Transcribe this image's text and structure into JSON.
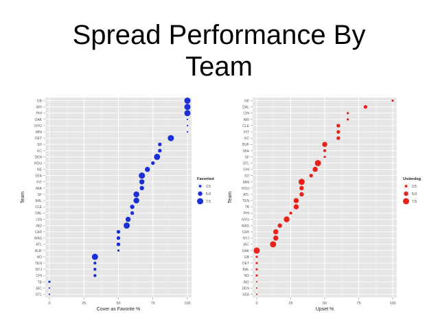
{
  "slide": {
    "title_line1": "Spread Performance By",
    "title_line2": "Team"
  },
  "chart_data": [
    {
      "type": "scatter",
      "xlabel": "Cover as Favorite %",
      "ylabel": "Team",
      "xlim": [
        0,
        100
      ],
      "xticks": [
        0,
        25,
        50,
        75,
        100
      ],
      "grid": true,
      "color": "#1c2fd6",
      "legend": {
        "title": "Favorited",
        "entries": [
          "2.5",
          "5.0",
          "7.5"
        ],
        "sizes": [
          2.5,
          5.0,
          7.5
        ],
        "placement": "right"
      },
      "points": [
        {
          "team": "GB",
          "x": 100,
          "size": 7.5
        },
        {
          "team": "ARI",
          "x": 100,
          "size": 7.5
        },
        {
          "team": "PHI",
          "x": 100,
          "size": 7.5
        },
        {
          "team": "OAK",
          "x": 100,
          "size": 1
        },
        {
          "team": "NYG",
          "x": 100,
          "size": 1
        },
        {
          "team": "MIN",
          "x": 100,
          "size": 1
        },
        {
          "team": "DET",
          "x": 88,
          "size": 7.5
        },
        {
          "team": "SD",
          "x": 80,
          "size": 4
        },
        {
          "team": "KC",
          "x": 80,
          "size": 4
        },
        {
          "team": "DEN",
          "x": 78,
          "size": 7.5
        },
        {
          "team": "HOU",
          "x": 75,
          "size": 4
        },
        {
          "team": "NE",
          "x": 71,
          "size": 6
        },
        {
          "team": "SEA",
          "x": 67,
          "size": 7.5
        },
        {
          "team": "PIT",
          "x": 67,
          "size": 6
        },
        {
          "team": "MIA",
          "x": 67,
          "size": 5
        },
        {
          "team": "SF",
          "x": 63,
          "size": 7
        },
        {
          "team": "BAL",
          "x": 63,
          "size": 7
        },
        {
          "team": "CLE",
          "x": 60,
          "size": 5
        },
        {
          "team": "DAL",
          "x": 60,
          "size": 4
        },
        {
          "team": "CIN",
          "x": 57,
          "size": 6
        },
        {
          "team": "IND",
          "x": 56,
          "size": 7.5
        },
        {
          "team": "CAR",
          "x": 50,
          "size": 4
        },
        {
          "team": "WAS",
          "x": 50,
          "size": 4
        },
        {
          "team": "ATL",
          "x": 50,
          "size": 4
        },
        {
          "team": "BUF",
          "x": 50,
          "size": 2
        },
        {
          "team": "NO",
          "x": 33,
          "size": 7.5
        },
        {
          "team": "TEN",
          "x": 33,
          "size": 3
        },
        {
          "team": "NYJ",
          "x": 33,
          "size": 3
        },
        {
          "team": "CHI",
          "x": 33,
          "size": 3
        },
        {
          "team": "TB",
          "x": 0,
          "size": 2
        },
        {
          "team": "JAC",
          "x": 0,
          "size": 1
        },
        {
          "team": "STL",
          "x": 0,
          "size": 1
        }
      ]
    },
    {
      "type": "scatter",
      "xlabel": "Upset %",
      "ylabel": "Team",
      "xlim": [
        0,
        100
      ],
      "xticks": [
        0,
        25,
        50,
        75,
        100
      ],
      "grid": true,
      "color": "#e8231c",
      "legend": {
        "title": "Underdog",
        "entries": [
          "2.5",
          "5.0",
          "7.5"
        ],
        "sizes": [
          2.5,
          5.0,
          7.5
        ],
        "placement": "right"
      },
      "points": [
        {
          "team": "NE",
          "x": 100,
          "size": 2
        },
        {
          "team": "DAL",
          "x": 80,
          "size": 4
        },
        {
          "team": "CIN",
          "x": 67,
          "size": 2
        },
        {
          "team": "ARI",
          "x": 67,
          "size": 2
        },
        {
          "team": "CLE",
          "x": 60,
          "size": 4
        },
        {
          "team": "PIT",
          "x": 60,
          "size": 4
        },
        {
          "team": "KC",
          "x": 60,
          "size": 4
        },
        {
          "team": "BUF",
          "x": 50,
          "size": 6
        },
        {
          "team": "MIA",
          "x": 50,
          "size": 3
        },
        {
          "team": "SF",
          "x": 50,
          "size": 2
        },
        {
          "team": "STL",
          "x": 45,
          "size": 7.5
        },
        {
          "team": "CHI",
          "x": 43,
          "size": 6
        },
        {
          "team": "SD",
          "x": 40,
          "size": 4
        },
        {
          "team": "MIN",
          "x": 33,
          "size": 7.5
        },
        {
          "team": "HOU",
          "x": 33,
          "size": 5
        },
        {
          "team": "ATL",
          "x": 33,
          "size": 5
        },
        {
          "team": "TEN",
          "x": 29,
          "size": 6
        },
        {
          "team": "TB",
          "x": 29,
          "size": 6
        },
        {
          "team": "PHI",
          "x": 25,
          "size": 3
        },
        {
          "team": "NYG",
          "x": 22,
          "size": 7
        },
        {
          "team": "WAS",
          "x": 17,
          "size": 5
        },
        {
          "team": "CAR",
          "x": 14,
          "size": 6
        },
        {
          "team": "NYJ",
          "x": 14,
          "size": 6
        },
        {
          "team": "JAC",
          "x": 12,
          "size": 7.5
        },
        {
          "team": "OAK",
          "x": 0,
          "size": 7.5
        },
        {
          "team": "GB",
          "x": 0,
          "size": 2
        },
        {
          "team": "DET",
          "x": 0,
          "size": 2
        },
        {
          "team": "BAL",
          "x": 0,
          "size": 2
        },
        {
          "team": "NO",
          "x": 0,
          "size": 2
        },
        {
          "team": "IND",
          "x": 0,
          "size": 1
        },
        {
          "team": "DEN",
          "x": 0,
          "size": 1
        },
        {
          "team": "SEA",
          "x": 0,
          "size": 1
        }
      ]
    }
  ]
}
